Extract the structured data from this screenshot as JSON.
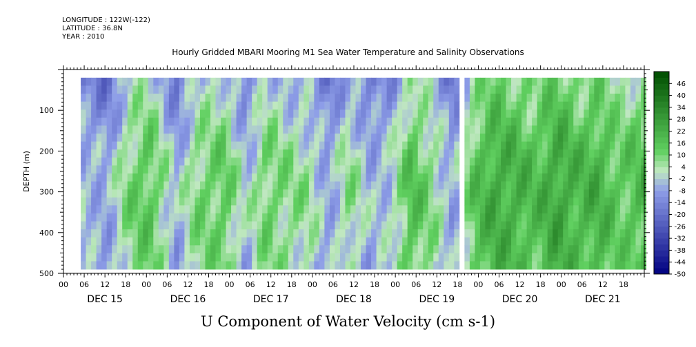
{
  "header": {
    "longitude": "LONGITUDE : 122W(-122)",
    "latitude": "LATITUDE : 36.8N",
    "year": "YEAR : 2010"
  },
  "title": "Hourly Gridded MBARI Mooring M1 Sea Water Temperature and Salinity Observations",
  "chart_data": {
    "type": "heatmap",
    "title": "Hourly Gridded MBARI Mooring M1 Sea Water Temperature and Salinity Observations",
    "xlabel": "",
    "ylabel": "DEPTH (m)",
    "variable": "U Component of Water Velocity (cm s-1)",
    "x_range_days": [
      "DEC 15 00",
      "DEC 21 24"
    ],
    "x_day_labels": [
      "DEC 15",
      "DEC 16",
      "DEC 17",
      "DEC 18",
      "DEC 19",
      "DEC 20",
      "DEC 21"
    ],
    "x_hour_ticks": [
      "00",
      "06",
      "12",
      "18"
    ],
    "y_range": [
      500,
      0
    ],
    "y_ticks": [
      100,
      200,
      300,
      400,
      500
    ],
    "data_depth_range": [
      20,
      490
    ],
    "data_start_hour": 5,
    "data_gap_hour": 114,
    "colorbar_levels": [
      46,
      40,
      34,
      28,
      22,
      16,
      10,
      4,
      -2,
      -8,
      -14,
      -20,
      -26,
      -32,
      -38,
      -44,
      -50
    ],
    "colorbar_range": [
      -50,
      52
    ],
    "colors": {
      "strong_negative": "#000080",
      "negative": "#8e9ee8",
      "near_zero": "#c0e8c0",
      "positive": "#60d060",
      "strong_positive": "#004d00"
    },
    "approx_u_by_time": [
      {
        "hour": 5,
        "u": -6
      },
      {
        "hour": 12,
        "u": -10
      },
      {
        "hour": 18,
        "u": 6
      },
      {
        "hour": 24,
        "u": 12
      },
      {
        "hour": 32,
        "u": -8
      },
      {
        "hour": 38,
        "u": 6
      },
      {
        "hour": 46,
        "u": 10
      },
      {
        "hour": 52,
        "u": -6
      },
      {
        "hour": 58,
        "u": 8
      },
      {
        "hour": 64,
        "u": 4
      },
      {
        "hour": 70,
        "u": 2
      },
      {
        "hour": 76,
        "u": -10
      },
      {
        "hour": 82,
        "u": 4
      },
      {
        "hour": 88,
        "u": -8
      },
      {
        "hour": 94,
        "u": -4
      },
      {
        "hour": 100,
        "u": 14
      },
      {
        "hour": 106,
        "u": 4
      },
      {
        "hour": 112,
        "u": -10
      },
      {
        "hour": 118,
        "u": 12
      },
      {
        "hour": 124,
        "u": 20
      },
      {
        "hour": 130,
        "u": 18
      },
      {
        "hour": 136,
        "u": 14
      },
      {
        "hour": 142,
        "u": 22
      },
      {
        "hour": 148,
        "u": 16
      },
      {
        "hour": 154,
        "u": 18
      },
      {
        "hour": 160,
        "u": 10
      },
      {
        "hour": 166,
        "u": 14
      }
    ],
    "approx_u_by_depth_offset": [
      {
        "depth": 20,
        "du": -8
      },
      {
        "depth": 100,
        "du": -4
      },
      {
        "depth": 200,
        "du": 2
      },
      {
        "depth": 300,
        "du": 4
      },
      {
        "depth": 400,
        "du": 2
      },
      {
        "depth": 490,
        "du": 0
      }
    ]
  }
}
